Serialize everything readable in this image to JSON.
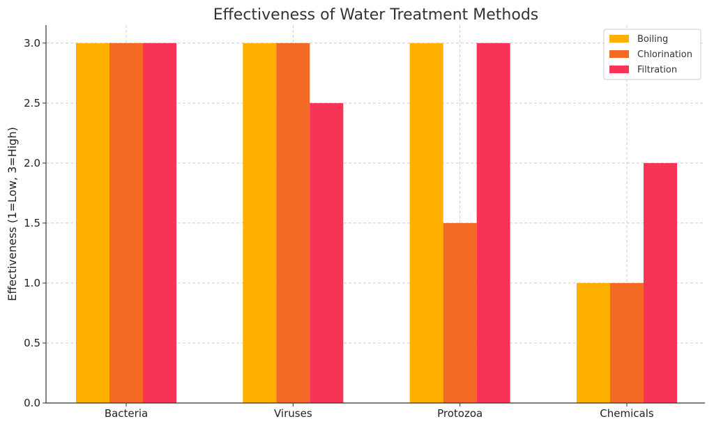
{
  "chart_data": {
    "type": "bar",
    "title": "Effectiveness of Water Treatment Methods",
    "xlabel": "",
    "ylabel": "Effectiveness (1=Low, 3=High)",
    "categories": [
      "Bacteria",
      "Viruses",
      "Protozoa",
      "Chemicals"
    ],
    "series": [
      {
        "name": "Boiling",
        "color": "#FFB000",
        "values": [
          3,
          3,
          3,
          1
        ]
      },
      {
        "name": "Chlorination",
        "color": "#F26A24",
        "values": [
          3,
          3,
          1.5,
          1
        ]
      },
      {
        "name": "Filtration",
        "color": "#F73455",
        "values": [
          3,
          2.5,
          3,
          2
        ]
      }
    ],
    "ylim": [
      0,
      3.15
    ],
    "yticks": [
      "0.0",
      "0.5",
      "1.0",
      "1.5",
      "2.0",
      "2.5",
      "3.0"
    ],
    "grid": true,
    "legend_position": "top-right"
  }
}
